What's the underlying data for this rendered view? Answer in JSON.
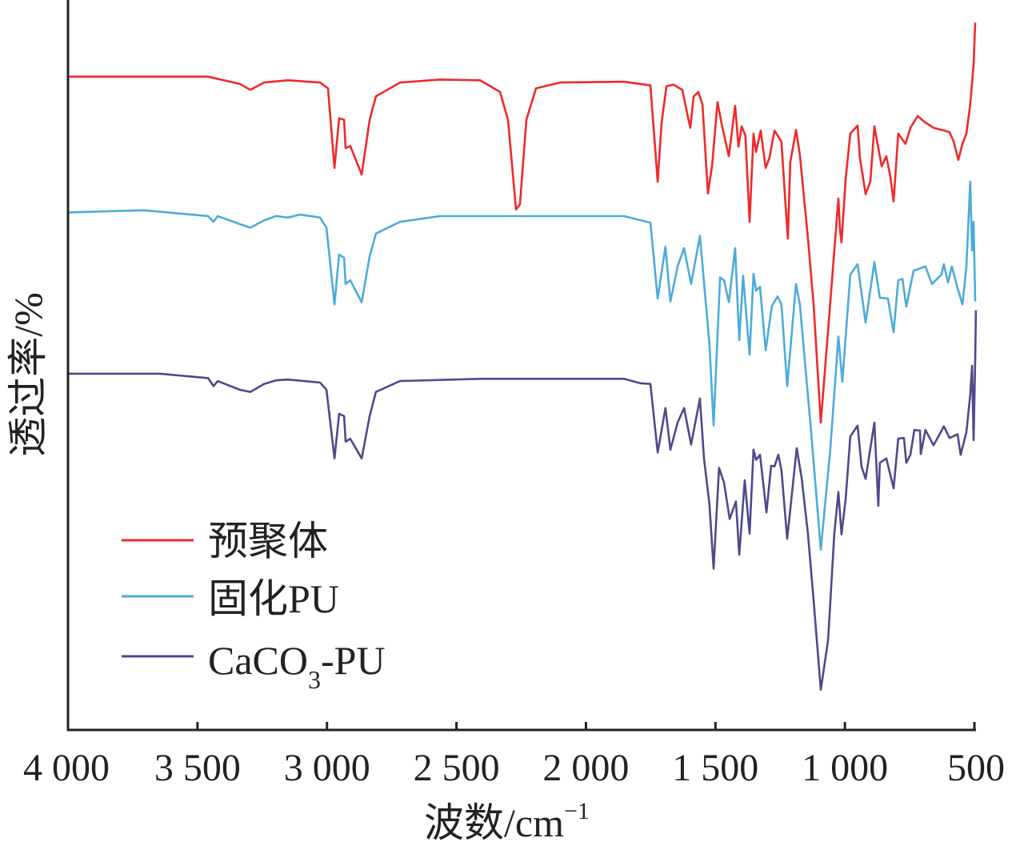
{
  "chart_data": {
    "type": "line",
    "title": "",
    "xlabel": "波数/cm",
    "xlabel_sup": "−1",
    "ylabel": "透过率/%",
    "xlim": [
      4000,
      494
    ],
    "ylim": [
      0,
      100
    ],
    "x_ticks": [
      4000,
      3500,
      3000,
      2500,
      2000,
      1500,
      1000,
      500
    ],
    "x_tick_labels": [
      "4 000",
      "3 500",
      "3 000",
      "2 500",
      "2 000",
      "1 500",
      "1 000",
      "500"
    ],
    "y_ticks_shown": false,
    "grid": false,
    "legend_position": "bottom-left",
    "series": [
      {
        "name": "预聚体",
        "legend_label": "预聚体",
        "color": "#ee2a2a",
        "x": [
          4000,
          3459,
          3336,
          3296,
          3243,
          3151,
          3027,
          2996,
          2971,
          2953,
          2934,
          2928,
          2910,
          2866,
          2835,
          2811,
          2718,
          2564,
          2409,
          2332,
          2301,
          2270,
          2255,
          2230,
          2193,
          2100,
          1853,
          1751,
          1723,
          1708,
          1689,
          1662,
          1628,
          1606,
          1597,
          1584,
          1566,
          1550,
          1529,
          1513,
          1492,
          1473,
          1448,
          1424,
          1411,
          1399,
          1384,
          1368,
          1353,
          1343,
          1325,
          1306,
          1291,
          1272,
          1245,
          1229,
          1220,
          1211,
          1189,
          1174,
          1143,
          1121,
          1093,
          1065,
          1041,
          1025,
          1019,
          1013,
          997,
          979,
          951,
          942,
          920,
          902,
          886,
          858,
          840,
          825,
          812,
          794,
          766,
          747,
          719,
          689,
          658,
          627,
          596,
          580,
          562,
          546,
          531,
          516,
          503,
          497
        ],
        "y": [
          89.5,
          89.5,
          88.5,
          87.7,
          88.7,
          89.0,
          88.7,
          87.9,
          77.0,
          83.8,
          83.6,
          79.7,
          80.0,
          76.1,
          83.6,
          86.8,
          88.7,
          89.1,
          89.0,
          87.4,
          83.6,
          71.3,
          72.0,
          83.6,
          87.9,
          88.7,
          88.8,
          88.3,
          75.1,
          83.2,
          88.2,
          88.4,
          87.7,
          83.9,
          82.5,
          86.8,
          87.4,
          85.7,
          73.5,
          77.3,
          86.0,
          82.5,
          78.6,
          85.5,
          79.9,
          82.7,
          81.4,
          69.6,
          81.7,
          79.2,
          82.1,
          77.0,
          78.4,
          82.1,
          80.6,
          71.8,
          67.3,
          77.7,
          82.2,
          78.8,
          67.4,
          58.3,
          42.1,
          54.7,
          65.7,
          72.8,
          68.5,
          66.8,
          75.5,
          81.7,
          82.8,
          78.4,
          73.4,
          75.1,
          82.7,
          77.2,
          78.6,
          75.9,
          72.4,
          81.7,
          80.3,
          82.5,
          84.1,
          83.2,
          82.5,
          82.2,
          81.9,
          80.6,
          78.1,
          80.3,
          81.7,
          85.7,
          91.2,
          96.9
        ]
      },
      {
        "name": "固化PU",
        "legend_label": "固化PU",
        "color": "#4eabd9",
        "x": [
          4000,
          3707,
          3459,
          3438,
          3422,
          3336,
          3296,
          3243,
          3197,
          3151,
          3104,
          3027,
          3002,
          2971,
          2953,
          2934,
          2928,
          2910,
          2866,
          2835,
          2811,
          2718,
          2564,
          2100,
          1853,
          1751,
          1723,
          1693,
          1674,
          1646,
          1621,
          1594,
          1560,
          1544,
          1523,
          1507,
          1482,
          1467,
          1448,
          1424,
          1408,
          1393,
          1368,
          1353,
          1343,
          1328,
          1306,
          1282,
          1260,
          1245,
          1223,
          1189,
          1174,
          1133,
          1093,
          1056,
          1025,
          1010,
          997,
          979,
          951,
          920,
          886,
          865,
          834,
          812,
          794,
          778,
          763,
          735,
          689,
          664,
          627,
          618,
          602,
          587,
          565,
          546,
          531,
          516,
          509,
          503,
          497
        ],
        "y": [
          70.9,
          71.2,
          70.4,
          69.6,
          70.4,
          69.3,
          68.8,
          69.8,
          70.4,
          70.2,
          70.6,
          70.2,
          68.8,
          58.3,
          65.1,
          64.7,
          61.1,
          61.6,
          58.6,
          64.9,
          68.0,
          69.6,
          70.4,
          70.4,
          70.4,
          69.5,
          59.1,
          66.2,
          58.7,
          63.5,
          66.0,
          61.1,
          67.7,
          61.3,
          52.9,
          41.7,
          62.0,
          61.6,
          58.6,
          66.0,
          53.4,
          62.2,
          51.4,
          62.5,
          60.2,
          60.7,
          52.0,
          58.1,
          59.4,
          58.3,
          47.1,
          61.1,
          58.3,
          41.9,
          24.7,
          38.6,
          53.9,
          47.7,
          53.9,
          62.4,
          63.8,
          55.8,
          64.1,
          59.2,
          59.1,
          54.5,
          61.6,
          61.8,
          58.0,
          62.9,
          63.5,
          61.1,
          62.4,
          63.8,
          61.3,
          63.5,
          60.5,
          58.3,
          63.5,
          75.1,
          65.7,
          69.6,
          58.7
        ]
      },
      {
        "name": "CaCO3-PU",
        "legend_label": "CaCO",
        "legend_sub": "3",
        "legend_suffix": "-PU",
        "color": "#4f4a8a",
        "x": [
          4000,
          3645,
          3459,
          3438,
          3422,
          3336,
          3296,
          3243,
          3197,
          3151,
          3027,
          3002,
          2971,
          2953,
          2934,
          2928,
          2910,
          2866,
          2835,
          2811,
          2718,
          2409,
          1853,
          1791,
          1751,
          1723,
          1693,
          1674,
          1646,
          1621,
          1594,
          1560,
          1544,
          1523,
          1507,
          1486,
          1467,
          1445,
          1421,
          1408,
          1387,
          1368,
          1353,
          1343,
          1328,
          1303,
          1285,
          1272,
          1257,
          1245,
          1223,
          1186,
          1167,
          1143,
          1121,
          1093,
          1065,
          1041,
          1025,
          1013,
          997,
          979,
          951,
          936,
          920,
          886,
          871,
          865,
          840,
          812,
          794,
          772,
          763,
          747,
          732,
          710,
          707,
          689,
          658,
          639,
          618,
          596,
          565,
          553,
          531,
          516,
          509,
          503,
          497,
          494
        ],
        "y": [
          48.8,
          48.8,
          48.2,
          47.1,
          47.8,
          46.6,
          46.3,
          47.4,
          47.9,
          48.0,
          47.6,
          46.6,
          37.2,
          43.3,
          43.0,
          39.5,
          39.9,
          37.2,
          43.0,
          46.3,
          47.8,
          48.1,
          48.1,
          47.5,
          47.4,
          38.0,
          44.1,
          38.4,
          42.1,
          44.1,
          39.1,
          45.4,
          37.2,
          30.9,
          22.1,
          35.9,
          33.9,
          28.9,
          31.3,
          24.0,
          34.2,
          26.9,
          38.4,
          37.0,
          37.7,
          29.8,
          36.2,
          36.1,
          37.7,
          35.6,
          26.2,
          38.6,
          34.5,
          26.9,
          17.8,
          5.5,
          12.3,
          26.9,
          32.6,
          26.8,
          31.7,
          40.2,
          41.7,
          36.1,
          34.4,
          42.1,
          30.7,
          36.6,
          37.2,
          33.1,
          39.9,
          40.0,
          36.6,
          37.7,
          41.1,
          41.0,
          37.8,
          41.1,
          39.0,
          40.2,
          41.6,
          40.0,
          40.5,
          37.7,
          40.8,
          45.9,
          49.9,
          39.7,
          50.7,
          57.5
        ]
      }
    ]
  }
}
